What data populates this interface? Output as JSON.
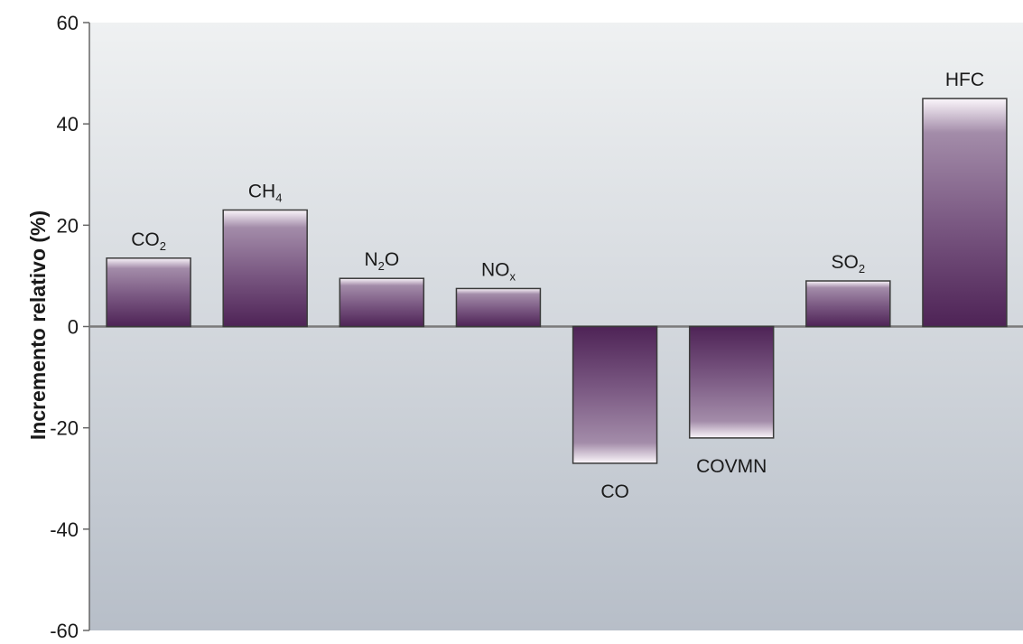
{
  "chart_data": {
    "type": "bar",
    "title": "",
    "xlabel": "",
    "ylabel": "Incremento relativo (%)",
    "ylim": [
      -60,
      60
    ],
    "yticks": [
      60,
      40,
      20,
      0,
      -20,
      -40,
      -60
    ],
    "ytick_labels": [
      "60",
      "40",
      "20",
      "0",
      "-20",
      "-40",
      "-60"
    ],
    "grid": false,
    "legend": "none",
    "categories": [
      {
        "base": "CO",
        "sub": "2"
      },
      {
        "base": "CH",
        "sub": "4"
      },
      {
        "base": "N",
        "sub": "2",
        "tail": "O"
      },
      {
        "base": "NO",
        "sub": "x"
      },
      {
        "base": "CO",
        "sub": ""
      },
      {
        "base": "COVMN",
        "sub": ""
      },
      {
        "base": "SO",
        "sub": "2"
      },
      {
        "base": "HFC",
        "sub": ""
      }
    ],
    "values": [
      13.5,
      23,
      9.5,
      7.5,
      -27,
      -22,
      9,
      45
    ]
  },
  "colors": {
    "bar_dark": "#4e2356",
    "bar_light": "#fbf6fb",
    "plot_top": "#eff1f2",
    "plot_bottom": "#b7bec8",
    "axis": "#666666",
    "zero_line": "#7a7a7a"
  }
}
